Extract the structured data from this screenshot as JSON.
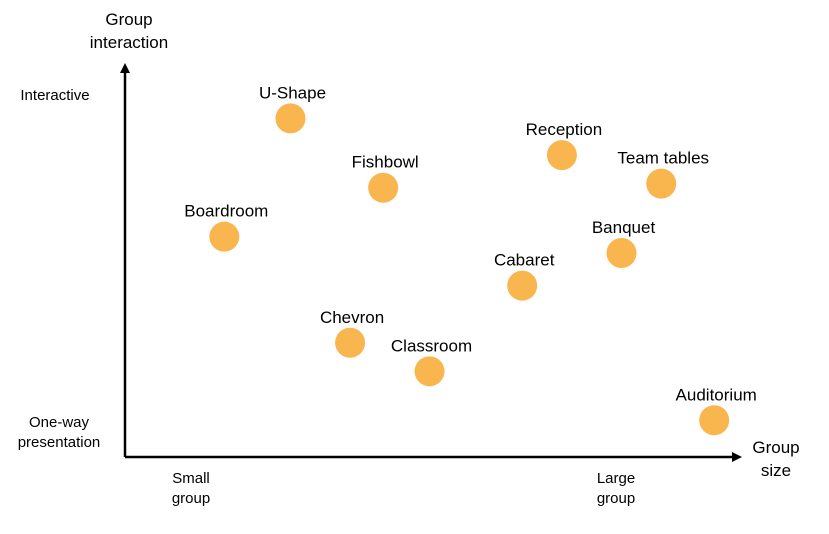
{
  "chart_data": {
    "type": "scatter",
    "xlabel": [
      "Group",
      "size"
    ],
    "ylabel": [
      "Group",
      "interaction"
    ],
    "x_ticks": [
      {
        "value": 0.1,
        "lines": [
          "Small",
          "group"
        ]
      },
      {
        "value": 0.8,
        "lines": [
          "Large",
          "group"
        ]
      }
    ],
    "y_ticks": [
      {
        "value": 1.0,
        "lines": [
          "Interactive"
        ]
      },
      {
        "value": 0.0,
        "lines": [
          "One-way",
          "presentation"
        ]
      }
    ],
    "xlim": [
      0,
      1
    ],
    "ylim": [
      0,
      1
    ],
    "grid": false,
    "legend": "none",
    "point_color": "#F9B64F",
    "axis_color": "#000000",
    "points": [
      {
        "label": "U-Shape",
        "x": 0.25,
        "y": 0.83
      },
      {
        "label": "Reception",
        "x": 0.66,
        "y": 0.74
      },
      {
        "label": "Team tables",
        "x": 0.81,
        "y": 0.67
      },
      {
        "label": "Fishbowl",
        "x": 0.39,
        "y": 0.66
      },
      {
        "label": "Boardroom",
        "x": 0.15,
        "y": 0.54
      },
      {
        "label": "Banquet",
        "x": 0.75,
        "y": 0.5
      },
      {
        "label": "Cabaret",
        "x": 0.6,
        "y": 0.42
      },
      {
        "label": "Chevron",
        "x": 0.34,
        "y": 0.28
      },
      {
        "label": "Classroom",
        "x": 0.46,
        "y": 0.21
      },
      {
        "label": "Auditorium",
        "x": 0.89,
        "y": 0.09
      }
    ]
  }
}
